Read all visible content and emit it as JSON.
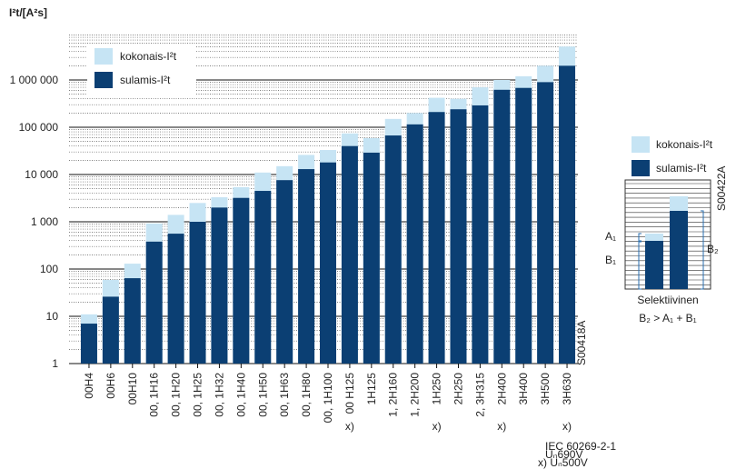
{
  "chart_data": {
    "type": "bar",
    "y_label": "I²t/[A²s]",
    "log_scale": true,
    "grid": true,
    "minor_grid": true,
    "legend": "top-left",
    "overlap": true,
    "categories": [
      "00H4",
      "00H6",
      "00H10",
      "00, 1H16",
      "00, 1H20",
      "00, 1H25",
      "00, 1H32",
      "00, 1H40",
      "00, 1H50",
      "00, 1H63",
      "00, 1H80",
      "00, 1H100",
      "00 H125",
      "1H125",
      "1, 2H160",
      "1, 2H200",
      "1H250",
      "2H250",
      "2, 3H315",
      "2H400",
      "3H400",
      "3H500",
      "3H630"
    ],
    "category_notes": [
      null,
      null,
      null,
      null,
      null,
      null,
      null,
      null,
      null,
      null,
      null,
      null,
      "x)",
      null,
      null,
      null,
      "x)",
      null,
      null,
      "x)",
      null,
      null,
      "x)"
    ],
    "series": [
      {
        "name": "kokonais-I²t",
        "color": "#c6e4f4",
        "values": [
          11,
          59,
          130,
          920,
          1400,
          2500,
          3300,
          5400,
          11000,
          15000,
          26000,
          33000,
          74000,
          59000,
          150000,
          200000,
          420000,
          400000,
          700000,
          1000000,
          1200000,
          2000000,
          5100000
        ]
      },
      {
        "name": "sulamis-I²t",
        "color": "#0b3f73",
        "values": [
          7,
          26,
          64,
          380,
          560,
          1000,
          2000,
          3200,
          4500,
          7600,
          13000,
          18000,
          40000,
          29000,
          67000,
          115000,
          210000,
          240000,
          290000,
          620000,
          680000,
          900000,
          2000000
        ]
      }
    ],
    "ylim": [
      1,
      10000000
    ],
    "yticks": [
      1,
      10,
      100,
      {
        "value": 1000,
        "label": "1 000"
      },
      {
        "value": 10000,
        "label": "10 000"
      },
      {
        "value": 100000,
        "label": "100 000"
      },
      {
        "value": 1000000,
        "label": "1 000 000"
      }
    ],
    "code": "S00418A",
    "standard": "IEC 60269-2-1",
    "voltage": "Uₙ690V",
    "note": "x) Uₙ500V"
  },
  "inset": {
    "legend": [
      "kokonais-I²t",
      "sulamis-I²t"
    ],
    "code": "S00422A",
    "labels": {
      "a1": "A₁",
      "b1": "B₁",
      "b2": "B₂"
    },
    "caption": "Selektiivinen",
    "formula": "B₂ > A₁ + B₁"
  }
}
